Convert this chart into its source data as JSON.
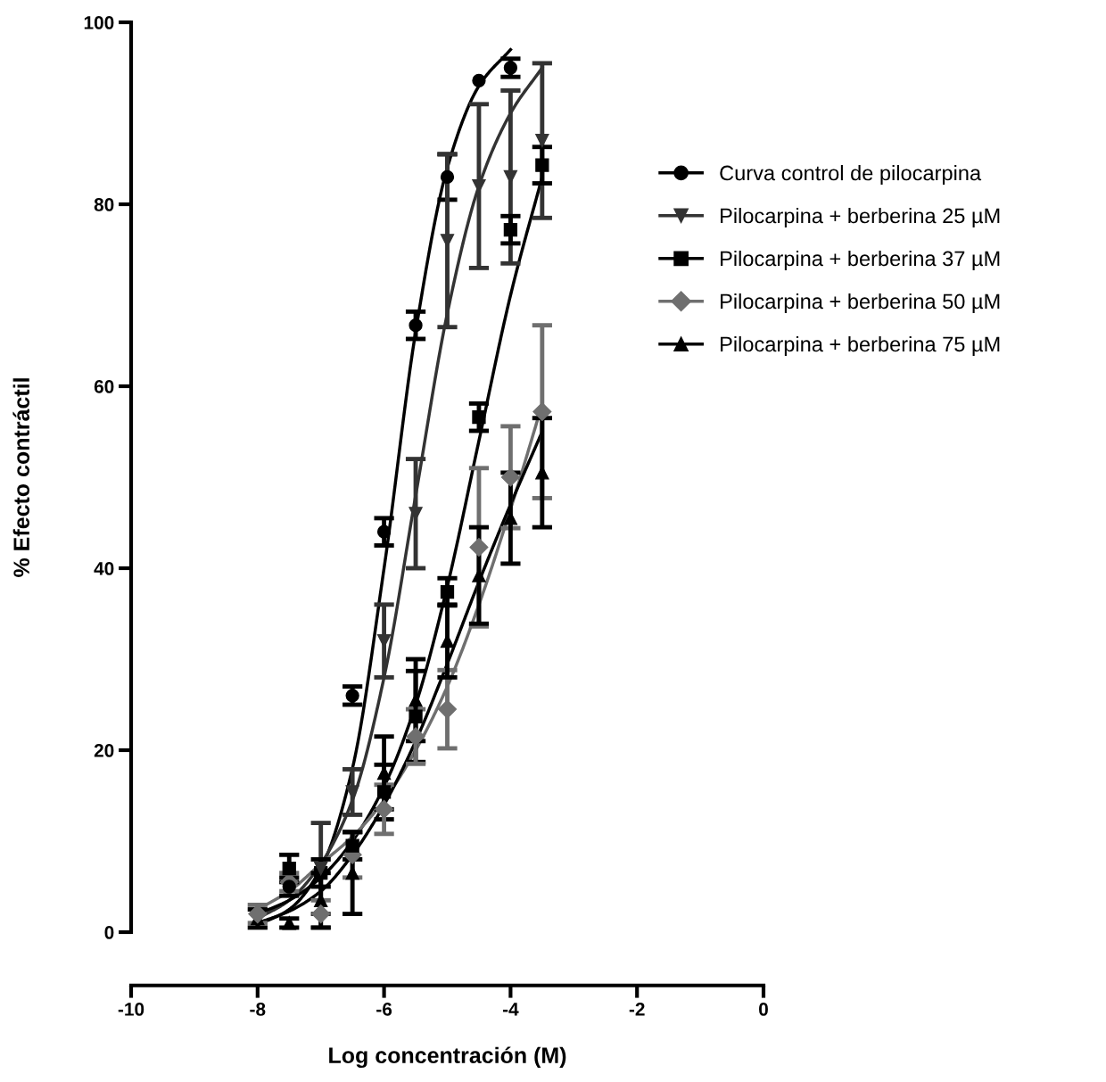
{
  "chart_data": {
    "type": "scatter",
    "xlabel": "Log concentración (M)",
    "ylabel": "% Efecto contráctil",
    "xlim": [
      -10,
      0
    ],
    "xticks": [
      -10,
      -8,
      -6,
      -4,
      -2,
      0
    ],
    "ylim": [
      0,
      100
    ],
    "yticks": [
      0,
      20,
      40,
      60,
      80,
      100
    ],
    "grid": false,
    "legend": "right",
    "series": [
      {
        "name": "Curva control de pilocarpina",
        "marker": "circle",
        "color": "#000000",
        "x": [
          -7.5,
          -6.5,
          -6,
          -5.5,
          -5,
          -4.5,
          -4
        ],
        "values": [
          5,
          26,
          44,
          66.7,
          83,
          93.6,
          95
        ],
        "errors": [
          1,
          1,
          1.5,
          1.5,
          2.5,
          null,
          1
        ]
      },
      {
        "name": "Pilocarpina + berberina 25 µM",
        "marker": "triangle_down",
        "color": "#333333",
        "x": [
          -7,
          -6.5,
          -6,
          -5.5,
          -5,
          -4.5,
          -4,
          -3.5
        ],
        "values": [
          7,
          15.4,
          32,
          46,
          76,
          82,
          83,
          87
        ],
        "errors": [
          5,
          2.5,
          4,
          6,
          9.5,
          9,
          9.5,
          8.5
        ]
      },
      {
        "name": "Pilocarpina + berberina 37 µM",
        "marker": "square",
        "color": "#000000",
        "x": [
          -7.5,
          -7,
          -6.5,
          -6,
          -5.5,
          -5,
          -4.5,
          -4,
          -3.5
        ],
        "values": [
          7,
          6.5,
          9.5,
          15.4,
          23.7,
          37.4,
          56.6,
          77.2,
          84.3
        ],
        "errors": [
          1.5,
          1.5,
          1.5,
          3,
          5,
          1.5,
          1.5,
          1.5,
          2
        ]
      },
      {
        "name": "Pilocarpina + berberina 50 µM",
        "marker": "diamond",
        "color": "#6f6f6f",
        "x": [
          -8,
          -7.5,
          -7,
          -6.5,
          -6,
          -5.5,
          -5,
          -4.5,
          -4,
          -3.5
        ],
        "values": [
          2,
          5.5,
          2,
          8.5,
          13.5,
          21.5,
          24.5,
          42.3,
          50,
          57.2
        ],
        "errors": [
          1,
          1,
          1.5,
          2.5,
          2.7,
          3,
          4.3,
          8.7,
          5.6,
          9.5
        ]
      },
      {
        "name": "Pilocarpina + berberina 75 µM",
        "marker": "triangle",
        "color": "#000000",
        "x": [
          -8,
          -7.5,
          -7,
          -6.5,
          -6,
          -5.5,
          -5,
          -4.5,
          -4,
          -3.5
        ],
        "values": [
          1.5,
          1,
          3.5,
          6.5,
          17.5,
          25.5,
          32,
          39.2,
          45.5,
          50.5
        ],
        "errors": [
          1,
          0.5,
          3,
          4.5,
          4,
          4.5,
          4,
          5.3,
          5,
          6
        ]
      },
      {
        "type": "line",
        "color": "#000000",
        "x": [
          -8,
          -7.5,
          -7,
          -6.5,
          -6,
          -5.5,
          -5,
          -4.5,
          -4
        ],
        "values": [
          0.8,
          2.5,
          7,
          18,
          40,
          66,
          84,
          93,
          97
        ]
      },
      {
        "type": "line",
        "color": "#333333",
        "x": [
          -8,
          -7.5,
          -7,
          -6.5,
          -6,
          -5.5,
          -5,
          -4.5,
          -4,
          -3.5
        ],
        "values": [
          1.5,
          3.5,
          7.5,
          14.5,
          28,
          48,
          68,
          82,
          90,
          95
        ]
      },
      {
        "type": "line",
        "color": "#000000",
        "x": [
          -8,
          -7.5,
          -7,
          -6.5,
          -6,
          -5.5,
          -5,
          -4.5,
          -4,
          -3.5
        ],
        "values": [
          2,
          3.5,
          6,
          10,
          16,
          25,
          38,
          54,
          70,
          83
        ]
      },
      {
        "type": "line",
        "color": "#6f6f6f",
        "x": [
          -8,
          -7.5,
          -7,
          -6.5,
          -6,
          -5.5,
          -5,
          -4.5,
          -4,
          -3.5
        ],
        "values": [
          2.5,
          4.5,
          7.5,
          10.5,
          14.5,
          20,
          27,
          36,
          46.5,
          58
        ]
      },
      {
        "type": "line",
        "color": "#000000",
        "x": [
          -8,
          -7.5,
          -7,
          -6.5,
          -6,
          -5.5,
          -5,
          -4.5,
          -4,
          -3.5
        ],
        "values": [
          1,
          2.3,
          4.5,
          8.5,
          14,
          21,
          29.5,
          38.5,
          47,
          55
        ]
      }
    ]
  }
}
